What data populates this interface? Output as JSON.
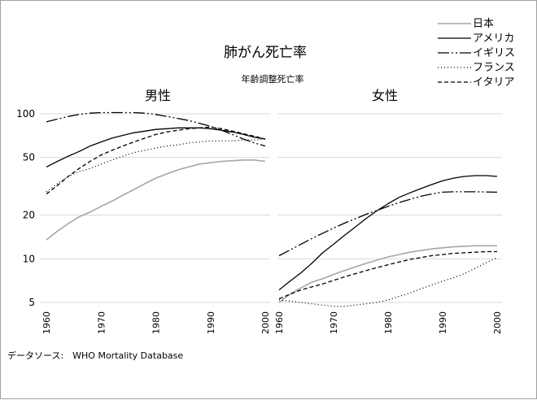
{
  "chart_data": {
    "type": "line",
    "title": "肺がん死亡率",
    "subtitle": "年齢調整死亡率",
    "source": "データソース:　WHO Mortality Database",
    "y_scale": "log",
    "ylim": [
      4.2,
      110
    ],
    "yticks": [
      100,
      50,
      20,
      10,
      5
    ],
    "ytick_labels": [
      "100",
      "50",
      "20",
      "10",
      "5"
    ],
    "xlim": [
      1960,
      2000
    ],
    "xticks": [
      1960,
      1970,
      1980,
      1990,
      2000
    ],
    "xtick_labels": [
      "1960",
      "1970",
      "1980",
      "1990",
      "2000"
    ],
    "grid": true,
    "legend_position": "top-right",
    "legend": [
      {
        "label": "日本",
        "color": "#a6a6a6",
        "dash": "solid"
      },
      {
        "label": "アメリカ",
        "color": "#000000",
        "dash": "solid"
      },
      {
        "label": "イギリス",
        "color": "#000000",
        "dash": "dashdotdot"
      },
      {
        "label": "フランス",
        "color": "#000000",
        "dash": "dotted"
      },
      {
        "label": "イタリア",
        "color": "#000000",
        "dash": "dashed"
      }
    ],
    "panels": [
      {
        "title": "男性",
        "series": [
          {
            "name": "日本",
            "x": [
              1960,
              1962,
              1964,
              1966,
              1968,
              1970,
              1972,
              1974,
              1976,
              1978,
              1980,
              1982,
              1984,
              1986,
              1988,
              1990,
              1992,
              1994,
              1996,
              1998,
              2000
            ],
            "y": [
              13.5,
              15.5,
              17.5,
              19.5,
              21,
              23,
              25,
              27.5,
              30,
              33,
              36,
              38.5,
              41,
              43,
              45,
              46,
              47,
              47.5,
              48,
              48,
              47
            ]
          },
          {
            "name": "アメリカ",
            "x": [
              1960,
              1962,
              1964,
              1966,
              1968,
              1970,
              1972,
              1974,
              1976,
              1978,
              1980,
              1982,
              1984,
              1986,
              1988,
              1990,
              1992,
              1994,
              1996,
              1998,
              2000
            ],
            "y": [
              43,
              47,
              51,
              55,
              60,
              64,
              68,
              71,
              74,
              76,
              78,
              79,
              80,
              80,
              80,
              79,
              77,
              75,
              72,
              69,
              67
            ]
          },
          {
            "name": "イギリス",
            "x": [
              1960,
              1962,
              1964,
              1966,
              1968,
              1970,
              1972,
              1974,
              1976,
              1978,
              1980,
              1982,
              1984,
              1986,
              1988,
              1990,
              1992,
              1994,
              1996,
              1998,
              2000
            ],
            "y": [
              88,
              92,
              96,
              99,
              101,
              102,
              102,
              102,
              102,
              101,
              99,
              96,
              93,
              90,
              86,
              82,
              77,
              72,
              67,
              63,
              60
            ]
          },
          {
            "name": "フランス",
            "x": [
              1960,
              1962,
              1964,
              1966,
              1968,
              1970,
              1972,
              1974,
              1976,
              1978,
              1980,
              1982,
              1984,
              1986,
              1988,
              1990,
              1992,
              1994,
              1996,
              1998,
              2000
            ],
            "y": [
              29,
              33,
              37,
              40,
              42,
              45,
              48,
              51,
              54,
              56,
              58,
              60,
              61,
              63,
              64,
              65,
              65,
              65,
              66,
              66,
              67
            ]
          },
          {
            "name": "イタリア",
            "x": [
              1960,
              1962,
              1964,
              1966,
              1968,
              1970,
              1972,
              1974,
              1976,
              1978,
              1980,
              1982,
              1984,
              1986,
              1988,
              1990,
              1992,
              1994,
              1996,
              1998,
              2000
            ],
            "y": [
              28,
              32,
              37,
              42,
              47,
              52,
              56,
              60,
              64,
              68,
              72,
              75,
              77,
              79,
              80,
              81,
              79,
              76,
              73,
              70,
              67
            ]
          }
        ]
      },
      {
        "title": "女性",
        "series": [
          {
            "name": "日本",
            "x": [
              1960,
              1962,
              1964,
              1966,
              1968,
              1970,
              1972,
              1974,
              1976,
              1978,
              1980,
              1982,
              1984,
              1986,
              1988,
              1990,
              1992,
              1994,
              1996,
              1998,
              2000
            ],
            "y": [
              5,
              5.7,
              6.3,
              6.9,
              7.3,
              7.8,
              8.3,
              8.8,
              9.3,
              9.8,
              10.3,
              10.7,
              11.1,
              11.4,
              11.7,
              11.9,
              12.1,
              12.2,
              12.3,
              12.3,
              12.3
            ]
          },
          {
            "name": "アメリカ",
            "x": [
              1960,
              1962,
              1964,
              1966,
              1968,
              1970,
              1972,
              1974,
              1976,
              1978,
              1980,
              1982,
              1984,
              1986,
              1988,
              1990,
              1992,
              1994,
              1996,
              1998,
              2000
            ],
            "y": [
              6.1,
              7,
              8,
              9.3,
              11,
              12.6,
              14.5,
              16.6,
              19,
              21.5,
              24,
              26.5,
              28.5,
              30.5,
              32.5,
              34.5,
              36,
              37,
              37.5,
              37.5,
              37
            ]
          },
          {
            "name": "イギリス",
            "x": [
              1960,
              1962,
              1964,
              1966,
              1968,
              1970,
              1972,
              1974,
              1976,
              1978,
              1980,
              1982,
              1984,
              1986,
              1988,
              1990,
              1992,
              1994,
              1996,
              1998,
              2000
            ],
            "y": [
              10.5,
              11.5,
              12.6,
              13.8,
              15,
              16.3,
              17.6,
              18.9,
              20.3,
              21.6,
              23,
              24.4,
              25.7,
              27,
              28,
              28.8,
              29,
              29,
              29,
              28.9,
              28.8
            ]
          },
          {
            "name": "フランス",
            "x": [
              1960,
              1962,
              1964,
              1966,
              1968,
              1970,
              1972,
              1974,
              1976,
              1978,
              1980,
              1982,
              1984,
              1986,
              1988,
              1990,
              1992,
              1994,
              1996,
              1998,
              2000
            ],
            "y": [
              5.2,
              5.1,
              5,
              4.9,
              4.8,
              4.7,
              4.7,
              4.8,
              4.9,
              5,
              5.2,
              5.5,
              5.8,
              6.2,
              6.6,
              7,
              7.4,
              7.9,
              8.6,
              9.4,
              10.2
            ]
          },
          {
            "name": "イタリア",
            "x": [
              1960,
              1962,
              1964,
              1966,
              1968,
              1970,
              1972,
              1974,
              1976,
              1978,
              1980,
              1982,
              1984,
              1986,
              1988,
              1990,
              1992,
              1994,
              1996,
              1998,
              2000
            ],
            "y": [
              5.3,
              5.7,
              6.1,
              6.4,
              6.7,
              7.1,
              7.5,
              7.9,
              8.3,
              8.7,
              9.1,
              9.5,
              9.9,
              10.2,
              10.5,
              10.7,
              10.9,
              11,
              11.1,
              11.2,
              11.2
            ]
          }
        ]
      }
    ]
  }
}
